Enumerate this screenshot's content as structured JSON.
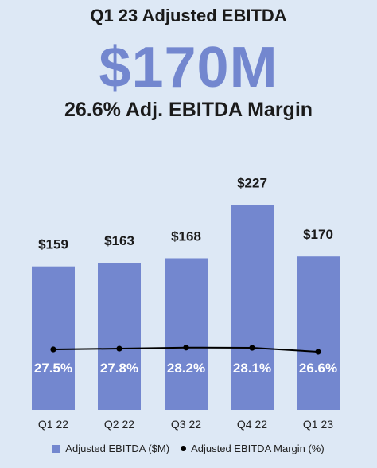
{
  "header": {
    "title": "Q1 23 Adjusted EBITDA",
    "headline_value": "$170M",
    "subtitle": "26.6% Adj. EBITDA Margin"
  },
  "colors": {
    "bar": "#7387cf",
    "headline": "#7387cf",
    "line": "#000000",
    "background": "#dde8f5"
  },
  "chart_data": {
    "type": "bar",
    "categories": [
      "Q1 22",
      "Q2 22",
      "Q3 22",
      "Q4 22",
      "Q1 23"
    ],
    "series": [
      {
        "name": "Adjusted EBITDA ($M)",
        "type": "bar",
        "values": [
          159,
          163,
          168,
          227,
          170
        ],
        "labels": [
          "$159",
          "$163",
          "$168",
          "$227",
          "$170"
        ]
      },
      {
        "name": "Adjusted EBITDA Margin (%)",
        "type": "line",
        "values": [
          27.5,
          27.8,
          28.2,
          28.1,
          26.6
        ],
        "labels": [
          "27.5%",
          "27.8%",
          "28.2%",
          "28.1%",
          "26.6%"
        ]
      }
    ],
    "grid": false,
    "legend_position": "bottom"
  }
}
